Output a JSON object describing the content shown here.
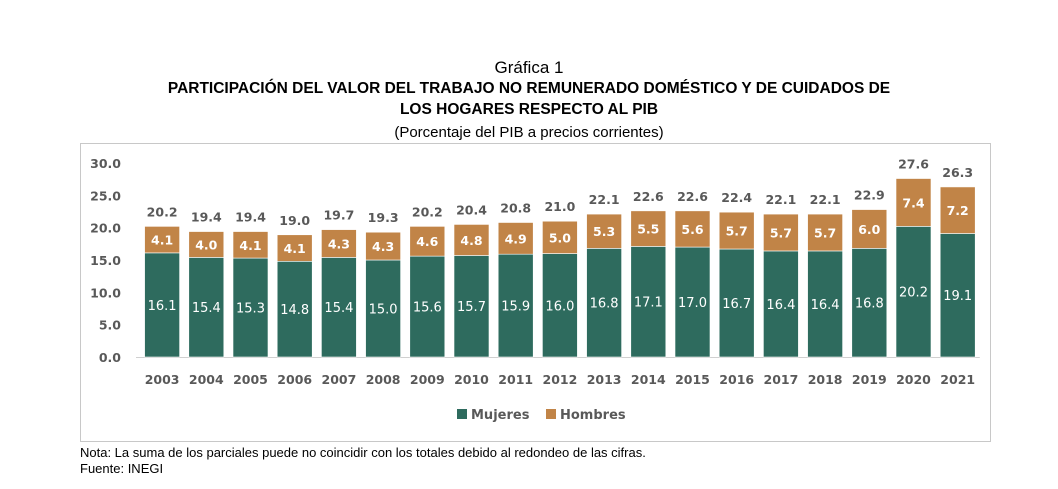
{
  "header": {
    "graph_number": "Gráfica 1",
    "title_line1": "PARTICIPACIÓN DEL VALOR DEL TRABAJO NO REMUNERADO DOMÉSTICO Y DE CUIDADOS DE",
    "title_line2": "LOS HOGARES RESPECTO AL PIB",
    "subtitle": "(Porcentaje del PIB a precios corrientes)"
  },
  "footer": {
    "note": "Nota: La suma de los parciales puede no coincidir con los totales debido al redondeo de las cifras.",
    "source": "Fuente: INEGI"
  },
  "colors": {
    "mujeres": "#2e6b5e",
    "hombres": "#c18447",
    "axis_text": "#595959"
  },
  "chart_data": {
    "type": "bar",
    "stacked": true,
    "title": "PARTICIPACIÓN DEL VALOR DEL TRABAJO NO REMUNERADO DOMÉSTICO Y DE CUIDADOS DE LOS HOGARES RESPECTO AL PIB",
    "subtitle": "(Porcentaje del PIB a precios corrientes)",
    "categories": [
      "2003",
      "2004",
      "2005",
      "2006",
      "2007",
      "2008",
      "2009",
      "2010",
      "2011",
      "2012",
      "2013",
      "2014",
      "2015",
      "2016",
      "2017",
      "2018",
      "2019",
      "2020",
      "2021"
    ],
    "series": [
      {
        "name": "Mujeres",
        "values": [
          16.1,
          15.4,
          15.3,
          14.8,
          15.4,
          15.0,
          15.6,
          15.7,
          15.9,
          16.0,
          16.8,
          17.1,
          17.0,
          16.7,
          16.4,
          16.4,
          16.8,
          20.2,
          19.1
        ]
      },
      {
        "name": "Hombres",
        "values": [
          4.1,
          4.0,
          4.1,
          4.1,
          4.3,
          4.3,
          4.6,
          4.8,
          4.9,
          5.0,
          5.3,
          5.5,
          5.6,
          5.7,
          5.7,
          5.7,
          6.0,
          7.4,
          7.2
        ]
      }
    ],
    "totals": [
      20.2,
      19.4,
      19.4,
      19.0,
      19.7,
      19.3,
      20.2,
      20.4,
      20.8,
      21.0,
      22.1,
      22.6,
      22.6,
      22.4,
      22.1,
      22.1,
      22.9,
      27.6,
      26.3
    ],
    "ylim": [
      0,
      30
    ],
    "yticks": [
      "0.0",
      "5.0",
      "10.0",
      "15.0",
      "20.0",
      "25.0",
      "30.0"
    ],
    "grid": false,
    "legend": "bottom"
  }
}
